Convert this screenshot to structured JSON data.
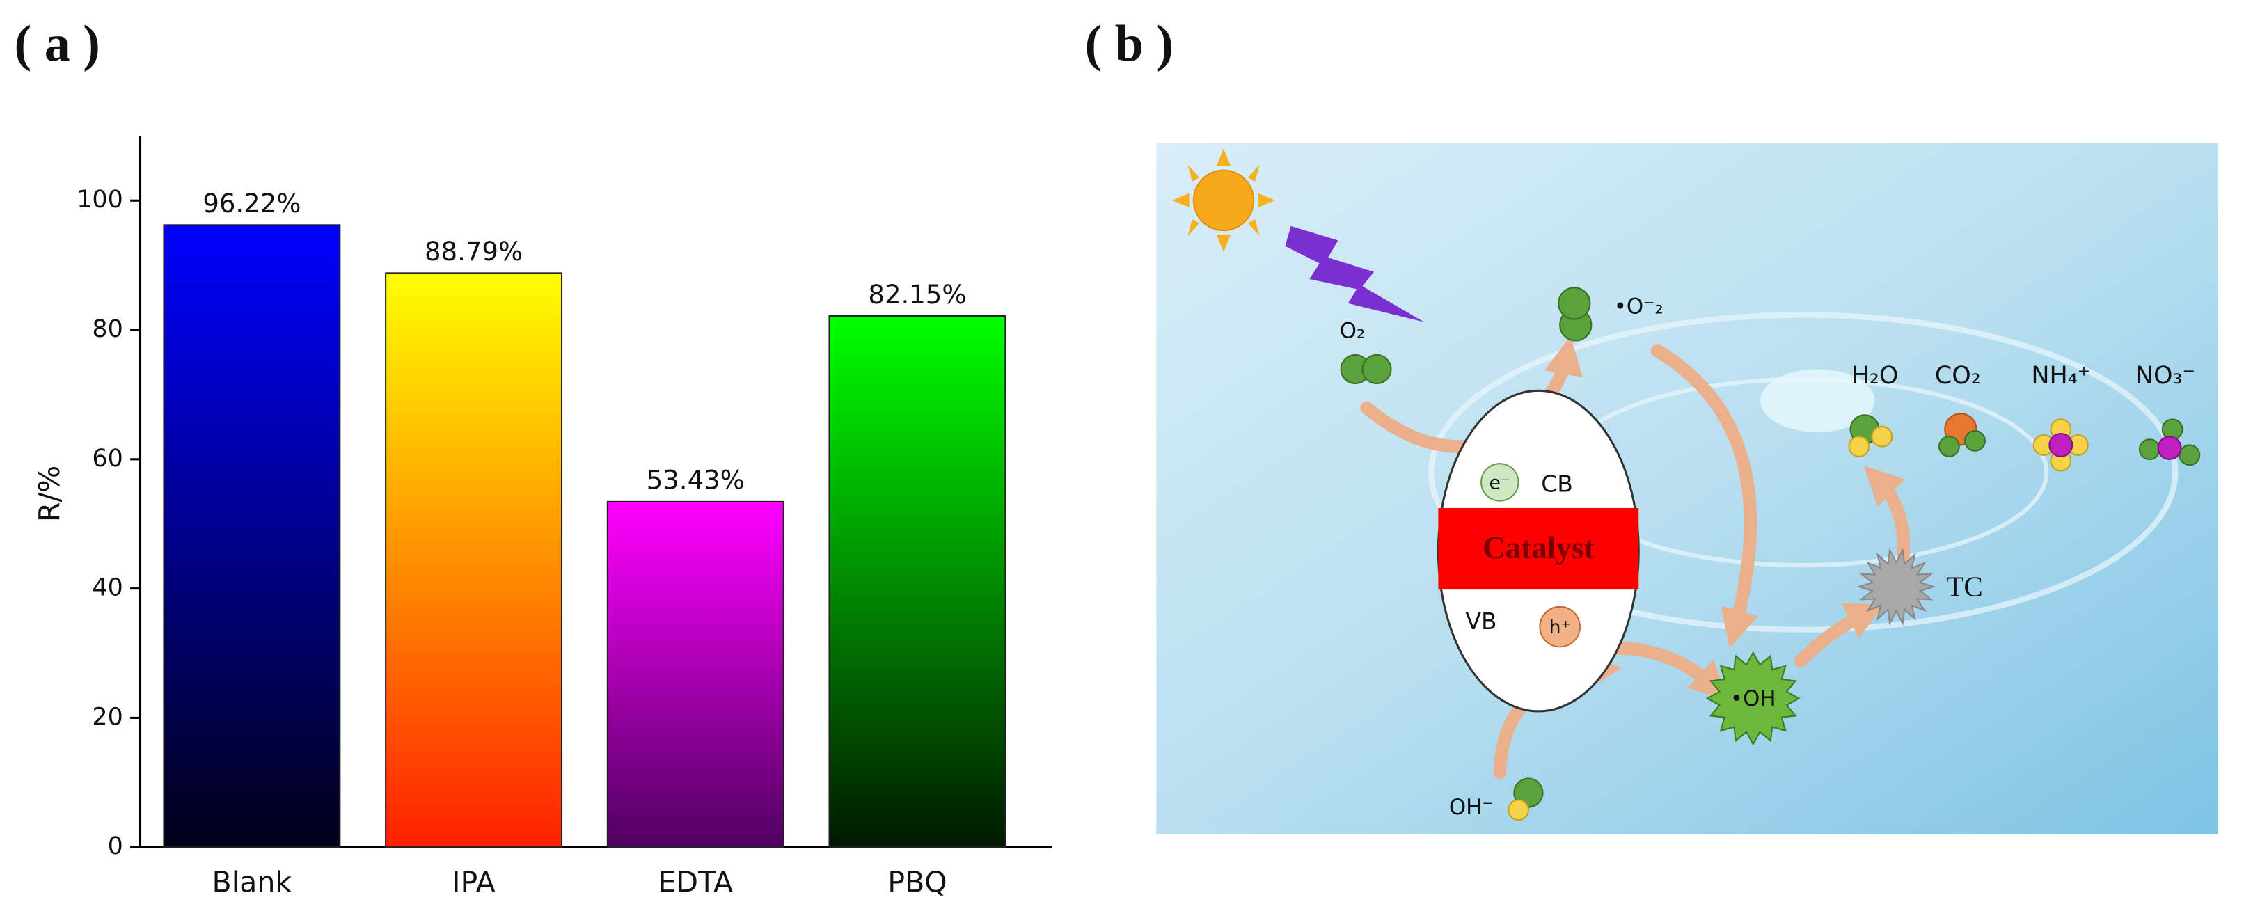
{
  "panel_labels": [
    "( a )",
    "( b )"
  ],
  "chart_data": {
    "type": "bar",
    "ylabel": "R/%",
    "categories": [
      "Blank",
      "IPA",
      "EDTA",
      "PBQ"
    ],
    "values": [
      96.22,
      88.79,
      53.43,
      82.15
    ],
    "value_labels": [
      "96.22%",
      "88.79%",
      "53.43%",
      "82.15%"
    ],
    "colors": [
      [
        "#0000ff",
        "#000018"
      ],
      [
        "#ffff00",
        "#ff2000"
      ],
      [
        "#ff00ff",
        "#500060"
      ],
      [
        "#00ff00",
        "#001800"
      ]
    ],
    "ylim": [
      0,
      110
    ],
    "yticks": [
      0,
      20,
      40,
      60,
      80,
      100
    ]
  },
  "diagram": {
    "o2": "O₂",
    "superoxide": "•O⁻₂",
    "h2o": "H₂O",
    "co2": "CO₂",
    "nh4": "NH₄⁺",
    "no3": "NO₃⁻",
    "electron": "e⁻",
    "cb": "CB",
    "catalyst": "Catalyst",
    "vb": "VB",
    "hole": "h⁺",
    "hydroxyl": "•OH",
    "tc": "TC",
    "hydroxide": "OH⁻"
  }
}
